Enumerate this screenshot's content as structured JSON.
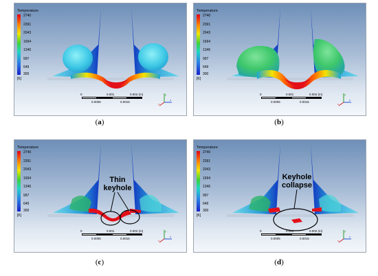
{
  "legend": {
    "title": "Temperature",
    "ticks": [
      "2740",
      "2391",
      "2043",
      "1694",
      "1346",
      "997",
      "649",
      "300"
    ],
    "unit": "[K]"
  },
  "scale": {
    "left": "0",
    "mid": "0.001",
    "right": "0.002 (m)",
    "sub_left": "0.0005",
    "sub_right": "0.0015"
  },
  "triad": {
    "x": "x",
    "y": "y",
    "z": "z"
  },
  "captions": {
    "a": "a",
    "b": "b",
    "c": "c",
    "d": "d"
  },
  "annotations": {
    "c": {
      "line1": "Thin",
      "line2": "keyhole"
    },
    "d": {
      "line1": "Keyhole",
      "line2": "collapse"
    }
  },
  "colors": {
    "hot": "#e0101a",
    "mid": "#2fc53c",
    "cold": "#1e4fd8",
    "cyan": "#5fd9ec"
  }
}
